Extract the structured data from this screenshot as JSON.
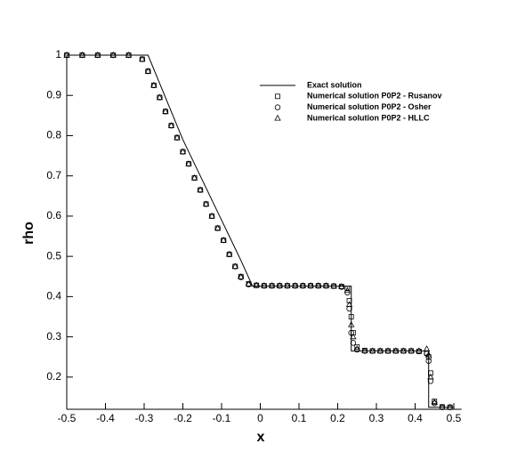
{
  "chart_data": {
    "type": "line",
    "x_label": "x",
    "y_label": "rho",
    "xlim": [
      -0.5,
      0.52
    ],
    "ylim": [
      0.12,
      1.0
    ],
    "xticks": [
      -0.5,
      -0.4,
      -0.3,
      -0.2,
      -0.1,
      0,
      0.1,
      0.2,
      0.3,
      0.4,
      0.5
    ],
    "yticks": [
      0.2,
      0.3,
      0.4,
      0.5,
      0.6,
      0.7,
      0.8,
      0.9,
      1
    ],
    "legend": "upper right",
    "x": [
      -0.5,
      -0.46,
      -0.42,
      -0.38,
      -0.34,
      -0.305,
      -0.29,
      -0.275,
      -0.26,
      -0.245,
      -0.23,
      -0.215,
      -0.2,
      -0.185,
      -0.17,
      -0.155,
      -0.14,
      -0.125,
      -0.11,
      -0.095,
      -0.08,
      -0.065,
      -0.05,
      -0.03,
      -0.01,
      0.01,
      0.03,
      0.05,
      0.07,
      0.09,
      0.11,
      0.13,
      0.15,
      0.17,
      0.19,
      0.21,
      0.225,
      0.23,
      0.235,
      0.24,
      0.25,
      0.27,
      0.29,
      0.31,
      0.33,
      0.35,
      0.37,
      0.39,
      0.41,
      0.43,
      0.435,
      0.44,
      0.45,
      0.47,
      0.49
    ],
    "series": [
      {
        "name": "Exact solution",
        "color": "#000000",
        "style": "line",
        "x": [
          -0.5,
          -0.29,
          -0.2,
          -0.1,
          -0.05,
          -0.02,
          0.235,
          0.235,
          0.435,
          0.435,
          0.5
        ],
        "values": [
          1,
          1,
          0.79,
          0.59,
          0.49,
          0.426,
          0.426,
          0.265,
          0.265,
          0.125,
          0.125
        ]
      },
      {
        "name": "Numerical solution P0P2 - Rusanov",
        "color": "#000000",
        "style": "square",
        "values": [
          1,
          1,
          1,
          1,
          1,
          0.99,
          0.96,
          0.925,
          0.895,
          0.86,
          0.825,
          0.795,
          0.76,
          0.73,
          0.695,
          0.665,
          0.63,
          0.6,
          0.57,
          0.54,
          0.505,
          0.475,
          0.45,
          0.432,
          0.428,
          0.427,
          0.427,
          0.427,
          0.427,
          0.427,
          0.427,
          0.427,
          0.427,
          0.427,
          0.426,
          0.425,
          0.42,
          0.39,
          0.35,
          0.31,
          0.275,
          0.266,
          0.265,
          0.265,
          0.265,
          0.265,
          0.265,
          0.265,
          0.264,
          0.26,
          0.25,
          0.21,
          0.14,
          0.126,
          0.125
        ]
      },
      {
        "name": "Numerical solution P0P2 - Osher",
        "color": "#000000",
        "style": "circle",
        "values": [
          1,
          1,
          1,
          1,
          1,
          0.99,
          0.96,
          0.925,
          0.895,
          0.86,
          0.825,
          0.795,
          0.76,
          0.73,
          0.695,
          0.665,
          0.63,
          0.6,
          0.57,
          0.54,
          0.505,
          0.475,
          0.448,
          0.43,
          0.428,
          0.427,
          0.427,
          0.427,
          0.427,
          0.427,
          0.427,
          0.427,
          0.427,
          0.427,
          0.426,
          0.424,
          0.41,
          0.37,
          0.31,
          0.285,
          0.268,
          0.265,
          0.265,
          0.265,
          0.265,
          0.265,
          0.265,
          0.265,
          0.264,
          0.258,
          0.24,
          0.19,
          0.135,
          0.125,
          0.125
        ]
      },
      {
        "name": "Numerical solution P0P2 - HLLC",
        "color": "#000000",
        "style": "triangle",
        "values": [
          1,
          1,
          1,
          1,
          1,
          0.99,
          0.96,
          0.925,
          0.895,
          0.86,
          0.825,
          0.795,
          0.76,
          0.73,
          0.695,
          0.665,
          0.63,
          0.6,
          0.57,
          0.54,
          0.505,
          0.475,
          0.449,
          0.431,
          0.428,
          0.427,
          0.427,
          0.427,
          0.427,
          0.427,
          0.427,
          0.427,
          0.427,
          0.427,
          0.426,
          0.425,
          0.415,
          0.38,
          0.33,
          0.3,
          0.27,
          0.265,
          0.265,
          0.265,
          0.265,
          0.265,
          0.265,
          0.265,
          0.265,
          0.27,
          0.255,
          0.2,
          0.137,
          0.125,
          0.125
        ]
      }
    ]
  }
}
